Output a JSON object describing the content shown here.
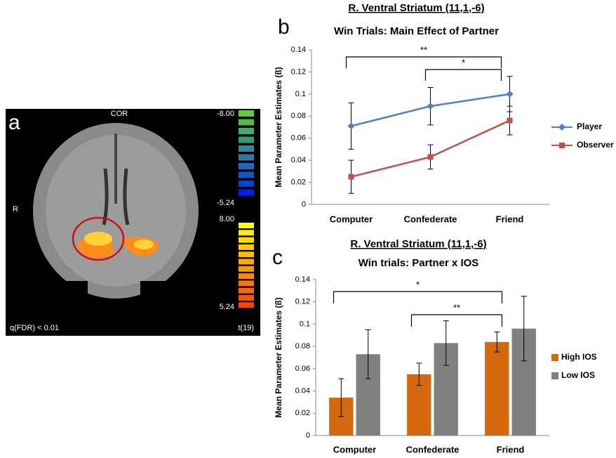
{
  "panel_a": {
    "label": "a",
    "view": "COR",
    "side": "R",
    "threshold": "q(FDR) < 0.01",
    "statistic": "t(19)",
    "colorbar_labels": [
      "-8.00",
      "-5.24",
      "8.00",
      "5.24"
    ]
  },
  "chart_data": [
    {
      "type": "line",
      "panel_label": "b",
      "title": "R. Ventral Striatum (11,1,-6)",
      "subtitle": "Win Trials: Main Effect of Partner",
      "y_label": "Mean Parameter Estimates (ß)",
      "categories": [
        "Computer",
        "Confederate",
        "Friend"
      ],
      "series": [
        {
          "name": "Player",
          "color": "#4f81bd",
          "marker": "diamond",
          "values": [
            0.071,
            0.089,
            0.1
          ],
          "errors": [
            0.021,
            0.017,
            0.016
          ]
        },
        {
          "name": "Observer",
          "color": "#c0504d",
          "marker": "square",
          "values": [
            0.025,
            0.043,
            0.076
          ],
          "errors": [
            0.015,
            0.011,
            0.013
          ]
        }
      ],
      "ylim": [
        0,
        0.14
      ],
      "yticks": [
        0,
        0.02,
        0.04,
        0.06,
        0.08,
        0.1,
        0.12,
        0.14
      ],
      "annotations": [
        "**",
        "*"
      ],
      "legend": "right"
    },
    {
      "type": "bar",
      "panel_label": "c",
      "title": "R. Ventral Striatum (11,1,-6)",
      "subtitle": "Win trials: Partner x IOS",
      "y_label": "Mean Parameter Estimates (ß)",
      "categories": [
        "Computer",
        "Confederate",
        "Friend"
      ],
      "series": [
        {
          "name": "High IOS",
          "color": "#d4690f",
          "values": [
            0.034,
            0.055,
            0.084
          ],
          "errors": [
            0.017,
            0.01,
            0.009
          ]
        },
        {
          "name": "Low IOS",
          "color": "#808080",
          "values": [
            0.073,
            0.083,
            0.096
          ],
          "errors": [
            0.022,
            0.02,
            0.029
          ]
        }
      ],
      "ylim": [
        0,
        0.14
      ],
      "yticks": [
        0,
        0.02,
        0.04,
        0.06,
        0.08,
        0.1,
        0.12,
        0.14
      ],
      "annotations": [
        "*",
        "**"
      ],
      "legend": "right"
    }
  ]
}
